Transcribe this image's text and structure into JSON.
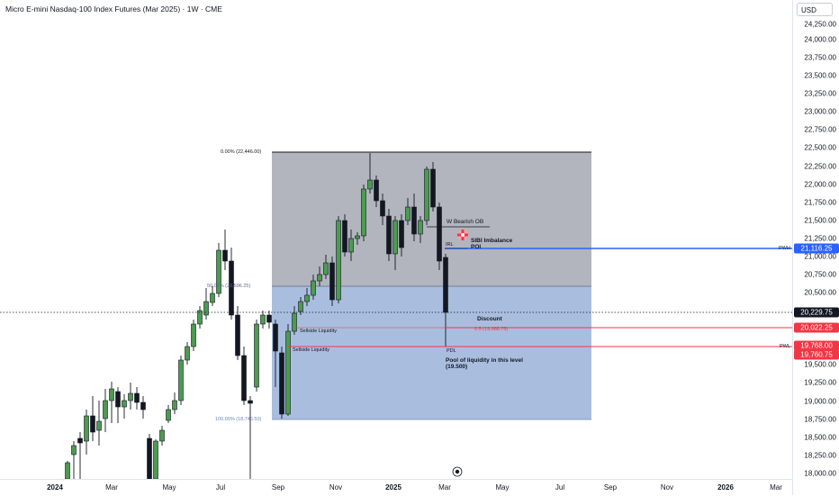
{
  "header": {
    "title": "Micro E-mini Nasdaq-100 Index Futures (Mar 2025) · 1W · CME"
  },
  "currency": "USD",
  "price_ticks": [
    "24,250.00",
    "24,000.00",
    "23,750.00",
    "23,500.00",
    "23,250.00",
    "23,000.00",
    "22,750.00",
    "22,500.00",
    "22,250.00",
    "22,000.00",
    "21,750.00",
    "21,500.00",
    "21,250.00",
    "21,000.00",
    "20,750.00",
    "20,500.00",
    "20,250.00",
    "19,750.00",
    "19,500.00",
    "19,250.00",
    "19,000.00",
    "18,750.00",
    "18,500.00",
    "18,250.00",
    "18,000.00"
  ],
  "time_labels": [
    {
      "text": "2024",
      "bold": true
    },
    {
      "text": "Mar",
      "bold": false
    },
    {
      "text": "May",
      "bold": false
    },
    {
      "text": "Jul",
      "bold": false
    },
    {
      "text": "Sep",
      "bold": false
    },
    {
      "text": "Nov",
      "bold": false
    },
    {
      "text": "2025",
      "bold": true
    },
    {
      "text": "Mar",
      "bold": false
    },
    {
      "text": "May",
      "bold": false
    },
    {
      "text": "Jul",
      "bold": false
    },
    {
      "text": "Sep",
      "bold": false
    },
    {
      "text": "Nov",
      "bold": false
    },
    {
      "text": "2026",
      "bold": true
    },
    {
      "text": "Mar",
      "bold": false
    }
  ],
  "price_labels": {
    "pwh": "21,116.25",
    "current": "20,229.75",
    "half": "20,022.25",
    "pwl": "19,768.00",
    "low": "19,760.75"
  },
  "fib": {
    "top": "0.00% (22,446.00)",
    "mid": "50.00% (20,596.25)",
    "bottom": "100.00% (18,746.50)",
    "half": "0.5 (19,988.75)"
  },
  "annotations": {
    "bearish_ob": "W Bearish OB",
    "sibi": "SIBI Imbalance",
    "poi": "POI",
    "irl": "IRL",
    "discount": "Discount",
    "sellside1": "Sellside Liquidity",
    "sellside2": "Sellside Liquidity",
    "pdl": "PDL",
    "pool1": "Pool of liquidity in this level",
    "pool2": "(19.500)"
  },
  "side_labels": {
    "pwh": "PWH",
    "pwl": "PWL"
  },
  "colors": {
    "up": "#4c9b50",
    "down": "#131722",
    "pwh": "#2962ff",
    "red": "#f23645",
    "premium": "#b2b5be",
    "discount": "#a9bedf"
  }
}
